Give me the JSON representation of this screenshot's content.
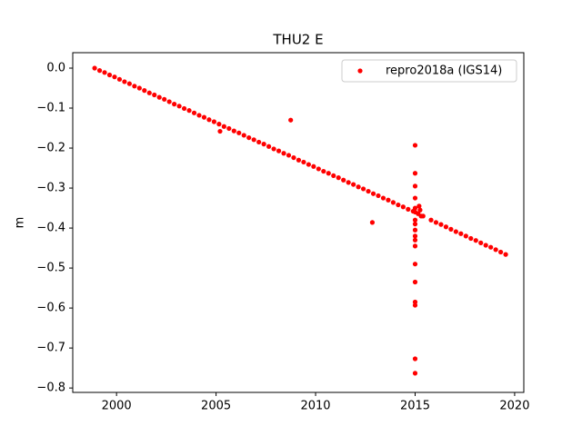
{
  "chart_data": {
    "type": "scatter",
    "title": "THU2 E",
    "y_label": "m",
    "xlim": [
      1997.8,
      2020.46
    ],
    "ylim": [
      -0.811,
      0.0386
    ],
    "xticks": [
      2000,
      2005,
      2010,
      2015,
      2020
    ],
    "yticks": [
      {
        "value": 0,
        "label": "0.0"
      },
      {
        "value": -0.1,
        "label": "−0.1"
      },
      {
        "value": -0.2,
        "label": "−0.2"
      },
      {
        "value": -0.3,
        "label": "−0.3"
      },
      {
        "value": -0.4,
        "label": "−0.4"
      },
      {
        "value": -0.5,
        "label": "−0.5"
      },
      {
        "value": -0.6,
        "label": "−0.6"
      },
      {
        "value": -0.7,
        "label": "−0.7"
      },
      {
        "value": -0.8,
        "label": "−0.8"
      }
    ],
    "legend": "upper right",
    "series": [
      {
        "name": "repro2018a (IGS14)",
        "color": "#ff0000",
        "x": [
          1998.9,
          1999.15,
          1999.4,
          1999.65,
          1999.9,
          2000.15,
          2000.4,
          2000.65,
          2000.9,
          2001.15,
          2001.4,
          2001.65,
          2001.9,
          2002.15,
          2002.4,
          2002.65,
          2002.9,
          2003.15,
          2003.4,
          2003.65,
          2003.9,
          2004.15,
          2004.4,
          2004.65,
          2004.9,
          2005.15,
          2005.4,
          2005.65,
          2005.9,
          2006.15,
          2006.4,
          2006.65,
          2006.9,
          2007.15,
          2007.4,
          2007.65,
          2007.9,
          2008.15,
          2008.4,
          2008.65,
          2008.9,
          2009.15,
          2009.4,
          2009.65,
          2009.9,
          2010.15,
          2010.4,
          2010.65,
          2010.9,
          2011.15,
          2011.4,
          2011.65,
          2011.9,
          2012.15,
          2012.4,
          2012.65,
          2012.9,
          2013.15,
          2013.4,
          2013.65,
          2013.9,
          2014.15,
          2014.4,
          2014.65,
          2014.9,
          2015.15,
          2015.3,
          2015.4,
          2015.8,
          2016.05,
          2016.3,
          2016.55,
          2016.8,
          2017.05,
          2017.3,
          2017.55,
          2017.8,
          2018.05,
          2018.3,
          2018.55,
          2018.8,
          2019.05,
          2019.3,
          2019.55,
          2005.2,
          2008.75,
          2012.85,
          2015.0,
          2015.0,
          2015.0,
          2015.0,
          2015.0,
          2015.0,
          2015.0,
          2015.0,
          2015.0,
          2015.0,
          2015.0,
          2015.0,
          2015.0,
          2015.0,
          2015.0,
          2015.0,
          2015.0,
          2015.0,
          2015.2,
          2015.25
        ],
        "values": [
          0,
          -0.006,
          -0.011,
          -0.017,
          -0.022,
          -0.028,
          -0.034,
          -0.039,
          -0.045,
          -0.05,
          -0.056,
          -0.062,
          -0.067,
          -0.073,
          -0.078,
          -0.084,
          -0.09,
          -0.095,
          -0.101,
          -0.106,
          -0.112,
          -0.118,
          -0.123,
          -0.129,
          -0.134,
          -0.14,
          -0.146,
          -0.151,
          -0.157,
          -0.162,
          -0.168,
          -0.174,
          -0.179,
          -0.185,
          -0.19,
          -0.196,
          -0.202,
          -0.207,
          -0.213,
          -0.218,
          -0.224,
          -0.23,
          -0.235,
          -0.241,
          -0.246,
          -0.252,
          -0.258,
          -0.263,
          -0.269,
          -0.274,
          -0.28,
          -0.286,
          -0.291,
          -0.297,
          -0.302,
          -0.308,
          -0.314,
          -0.319,
          -0.325,
          -0.33,
          -0.336,
          -0.342,
          -0.347,
          -0.353,
          -0.358,
          -0.364,
          -0.37,
          -0.37,
          -0.38,
          -0.386,
          -0.391,
          -0.397,
          -0.403,
          -0.409,
          -0.414,
          -0.42,
          -0.426,
          -0.431,
          -0.437,
          -0.443,
          -0.448,
          -0.454,
          -0.46,
          -0.466,
          -0.158,
          -0.13,
          -0.386,
          -0.193,
          -0.263,
          -0.295,
          -0.325,
          -0.35,
          -0.36,
          -0.38,
          -0.39,
          -0.405,
          -0.42,
          -0.43,
          -0.445,
          -0.49,
          -0.535,
          -0.585,
          -0.593,
          -0.727,
          -0.763,
          -0.345,
          -0.355
        ]
      }
    ]
  }
}
